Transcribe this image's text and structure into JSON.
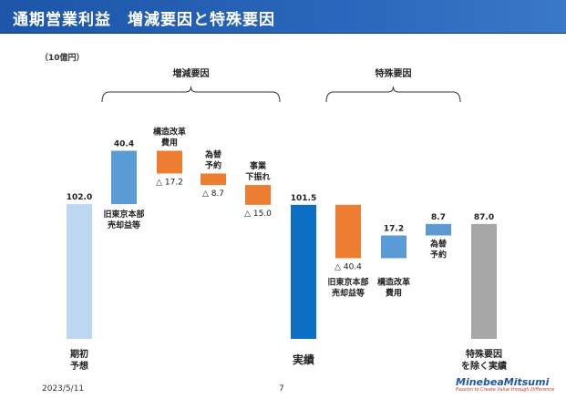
{
  "header": {
    "title": "通期営業利益　増減要因と特殊要因"
  },
  "unit_label": "（10億円）",
  "footer": {
    "date": "2023/5/11",
    "page": "7",
    "brand": "MinebeaMitsumi",
    "tagline": "Passion to Create Value through Difference"
  },
  "colors": {
    "start": "#bdd7f3",
    "increase": "#5b9bd5",
    "decrease": "#ed7d31",
    "actual": "#0b6fc4",
    "end": "#a6a6a6"
  },
  "chart_data": {
    "type": "bar",
    "subtype": "waterfall",
    "groups": [
      {
        "label": "増減要因",
        "from": 1,
        "to": 4
      },
      {
        "label": "特殊要因",
        "from": 6,
        "to": 8
      }
    ],
    "items": [
      {
        "label": [
          "期初",
          "予想"
        ],
        "value_label": "102.0",
        "kind": "total",
        "base": 0,
        "top": 102.0
      },
      {
        "label": [
          "旧東京本部",
          "売却益等"
        ],
        "value_label": "40.4",
        "kind": "increase",
        "base": 102.0,
        "top": 142.4
      },
      {
        "label": [
          "構造改革",
          "費用"
        ],
        "value_label": "△ 17.2",
        "kind": "decrease",
        "base": 125.2,
        "top": 142.4
      },
      {
        "label": [
          "為替",
          "予約"
        ],
        "value_label": "△ 8.7",
        "kind": "decrease",
        "base": 116.5,
        "top": 125.2
      },
      {
        "label": [
          "事業",
          "下振れ"
        ],
        "value_label": "△ 15.0",
        "kind": "decrease",
        "base": 101.5,
        "top": 116.5
      },
      {
        "label": [
          "実績"
        ],
        "value_label": "101.5",
        "kind": "actual",
        "base": 0,
        "top": 101.5
      },
      {
        "label": [
          "旧東京本部",
          "売却益等"
        ],
        "value_label": "△ 40.4",
        "kind": "decrease",
        "base": 61.1,
        "top": 101.5
      },
      {
        "label": [
          "構造改革",
          "費用"
        ],
        "value_label": "17.2",
        "kind": "increase",
        "base": 61.1,
        "top": 78.3
      },
      {
        "label": [
          "為替",
          "予約"
        ],
        "value_label": "8.7",
        "kind": "increase",
        "base": 78.3,
        "top": 87.0
      },
      {
        "label": [
          "特殊要因",
          "を除く実績"
        ],
        "value_label": "87.0",
        "kind": "end",
        "base": 0,
        "top": 87.0
      }
    ]
  }
}
